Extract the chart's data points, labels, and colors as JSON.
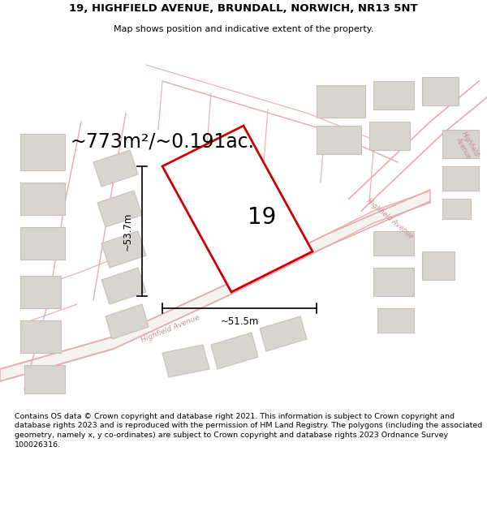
{
  "title_line1": "19, HIGHFIELD AVENUE, BRUNDALL, NORWICH, NR13 5NT",
  "title_line2": "Map shows position and indicative extent of the property.",
  "area_text": "~773m²/~0.191ac.",
  "plot_number": "19",
  "dim_width": "~51.5m",
  "dim_height": "~53.7m",
  "footer": "Contains OS data © Crown copyright and database right 2021. This information is subject to Crown copyright and database rights 2023 and is reproduced with the permission of HM Land Registry. The polygons (including the associated geometry, namely x, y co-ordinates) are subject to Crown copyright and database rights 2023 Ordnance Survey 100026316.",
  "map_bg": "#f5f3f0",
  "plot_fill": "white",
  "plot_edge": "#cc0000",
  "road_line_color": "#e8aaaa",
  "building_fill": "#d8d4ce",
  "building_edge": "#c8c0b8",
  "road_label_color": "#c09090",
  "title_bg": "white",
  "footer_bg": "white",
  "dim_color": "black",
  "number_color": "black"
}
